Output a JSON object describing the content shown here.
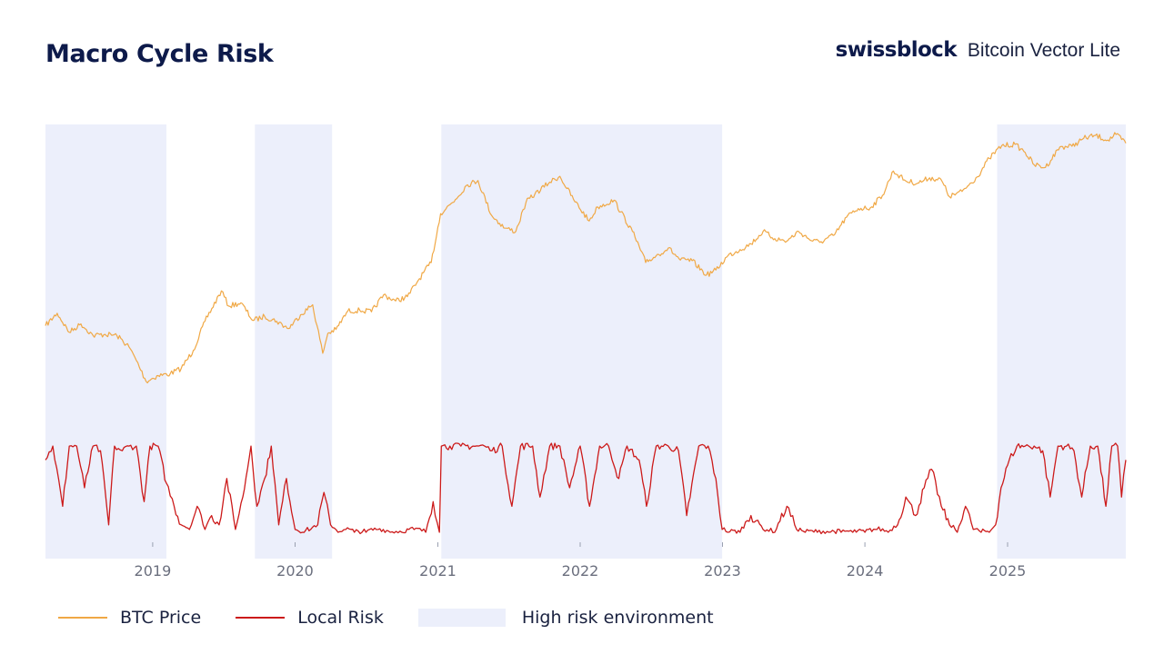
{
  "header": {
    "title": "Macro Cycle Risk",
    "brand": "swissblock",
    "product": "Bitcoin Vector Lite"
  },
  "colors": {
    "btc_price": "#f0a845",
    "local_risk": "#cc1a1a",
    "high_risk_band": "#eceffb",
    "title": "#0d1a4a",
    "axis_text": "#6b6f7e"
  },
  "legend": [
    {
      "label": "BTC Price",
      "kind": "line",
      "color": "#f0a845"
    },
    {
      "label": "Local Risk",
      "kind": "line",
      "color": "#cc1a1a"
    },
    {
      "label": "High risk environment",
      "kind": "box",
      "color": "#eceffb"
    }
  ],
  "chart_data": {
    "type": "line",
    "title": "Macro Cycle Risk",
    "xlabel": "",
    "ylabel": "",
    "x_ticks": [
      "2019",
      "2020",
      "2021",
      "2022",
      "2023",
      "2024",
      "2025"
    ],
    "xlim": [
      "2018-04-01",
      "2025-10-31"
    ],
    "price_scale": "log",
    "grid": false,
    "legend_position": "bottom",
    "high_risk_periods": [
      [
        "2018-04-01",
        "2019-02-05"
      ],
      [
        "2019-09-20",
        "2020-04-05"
      ],
      [
        "2021-01-10",
        "2022-12-31"
      ],
      [
        "2024-12-05",
        "2025-10-31"
      ]
    ],
    "series": [
      {
        "name": "BTC Price",
        "x": [
          "2018-04-01",
          "2018-05-01",
          "2018-06-01",
          "2018-07-01",
          "2018-08-01",
          "2018-09-01",
          "2018-10-01",
          "2018-11-01",
          "2018-11-20",
          "2018-12-15",
          "2019-01-15",
          "2019-02-15",
          "2019-03-15",
          "2019-04-15",
          "2019-05-15",
          "2019-06-26",
          "2019-07-15",
          "2019-08-15",
          "2019-09-15",
          "2019-10-15",
          "2019-11-15",
          "2019-12-15",
          "2020-01-15",
          "2020-02-15",
          "2020-03-12",
          "2020-03-25",
          "2020-04-15",
          "2020-05-15",
          "2020-06-15",
          "2020-07-15",
          "2020-08-15",
          "2020-09-15",
          "2020-10-15",
          "2020-11-15",
          "2020-12-15",
          "2021-01-08",
          "2021-02-15",
          "2021-03-15",
          "2021-04-14",
          "2021-05-19",
          "2021-06-22",
          "2021-07-20",
          "2021-08-15",
          "2021-09-07",
          "2021-10-15",
          "2021-11-10",
          "2021-12-15",
          "2022-01-24",
          "2022-02-15",
          "2022-03-29",
          "2022-04-15",
          "2022-05-15",
          "2022-06-18",
          "2022-07-15",
          "2022-08-15",
          "2022-09-15",
          "2022-10-15",
          "2022-11-21",
          "2022-12-15",
          "2023-01-15",
          "2023-02-15",
          "2023-03-15",
          "2023-04-15",
          "2023-05-15",
          "2023-06-15",
          "2023-07-15",
          "2023-08-20",
          "2023-09-11",
          "2023-10-15",
          "2023-11-15",
          "2023-12-15",
          "2024-01-15",
          "2024-02-15",
          "2024-03-14",
          "2024-04-15",
          "2024-05-15",
          "2024-06-15",
          "2024-07-15",
          "2024-08-05",
          "2024-09-06",
          "2024-10-15",
          "2024-11-15",
          "2024-12-17",
          "2025-01-20",
          "2025-02-15",
          "2025-03-10",
          "2025-04-08",
          "2025-05-15",
          "2025-06-15",
          "2025-07-15",
          "2025-08-14",
          "2025-09-15",
          "2025-10-06",
          "2025-10-31"
        ],
        "values": [
          7500,
          9000,
          6800,
          7700,
          6500,
          6600,
          6500,
          5500,
          4500,
          3300,
          3600,
          3700,
          4000,
          5200,
          8000,
          12500,
          10000,
          10500,
          8100,
          8600,
          8000,
          7200,
          8800,
          10200,
          5000,
          6700,
          7100,
          9300,
          9400,
          9200,
          11800,
          10800,
          11500,
          15000,
          19000,
          39000,
          48000,
          59000,
          63500,
          38000,
          31500,
          30000,
          46000,
          52000,
          62000,
          67500,
          48000,
          35000,
          43000,
          47500,
          40000,
          30000,
          19000,
          21000,
          23500,
          19700,
          19500,
          15800,
          17000,
          21000,
          23000,
          25000,
          30000,
          27000,
          26000,
          30000,
          26000,
          25800,
          28500,
          37000,
          42000,
          42500,
          51000,
          73000,
          63000,
          61000,
          66000,
          64000,
          50000,
          54000,
          67000,
          88000,
          106000,
          108000,
          96000,
          80000,
          77000,
          104000,
          105000,
          118000,
          123000,
          115000,
          125000,
          110000
        ]
      },
      {
        "name": "Local Risk",
        "x": [
          "2018-04-01",
          "2018-04-20",
          "2018-05-15",
          "2018-06-01",
          "2018-06-20",
          "2018-07-10",
          "2018-08-01",
          "2018-08-20",
          "2018-09-10",
          "2018-09-25",
          "2018-10-15",
          "2018-11-01",
          "2018-11-20",
          "2018-12-10",
          "2018-12-25",
          "2019-01-15",
          "2019-02-05",
          "2019-02-25",
          "2019-03-15",
          "2019-04-05",
          "2019-04-25",
          "2019-05-15",
          "2019-06-01",
          "2019-06-20",
          "2019-07-10",
          "2019-08-01",
          "2019-08-20",
          "2019-09-10",
          "2019-09-25",
          "2019-10-15",
          "2019-11-01",
          "2019-11-20",
          "2019-12-10",
          "2020-01-01",
          "2020-01-20",
          "2020-02-10",
          "2020-02-28",
          "2020-03-15",
          "2020-04-01",
          "2020-04-20",
          "2020-05-10",
          "2020-06-01",
          "2020-07-01",
          "2020-08-01",
          "2020-09-01",
          "2020-10-01",
          "2020-11-01",
          "2020-12-01",
          "2020-12-20",
          "2021-01-05",
          "2021-01-10",
          "2021-02-01",
          "2021-03-01",
          "2021-04-01",
          "2021-05-01",
          "2021-05-20",
          "2021-06-15",
          "2021-07-10",
          "2021-08-01",
          "2021-09-01",
          "2021-09-20",
          "2021-10-15",
          "2021-11-10",
          "2021-12-05",
          "2022-01-01",
          "2022-01-25",
          "2022-02-20",
          "2022-03-15",
          "2022-04-10",
          "2022-05-01",
          "2022-06-01",
          "2022-06-20",
          "2022-07-15",
          "2022-08-15",
          "2022-09-10",
          "2022-10-01",
          "2022-11-01",
          "2022-11-25",
          "2022-12-15",
          "2022-12-31",
          "2023-01-15",
          "2023-02-15",
          "2023-03-15",
          "2023-04-15",
          "2023-05-15",
          "2023-06-15",
          "2023-07-10",
          "2023-08-01",
          "2023-09-01",
          "2023-10-01",
          "2023-11-01",
          "2023-12-01",
          "2024-01-01",
          "2024-02-01",
          "2024-03-01",
          "2024-03-25",
          "2024-04-15",
          "2024-05-10",
          "2024-06-01",
          "2024-06-20",
          "2024-07-15",
          "2024-08-05",
          "2024-08-25",
          "2024-09-15",
          "2024-10-05",
          "2024-10-25",
          "2024-11-15",
          "2024-12-01",
          "2024-12-15",
          "2025-01-05",
          "2025-01-25",
          "2025-02-15",
          "2025-03-10",
          "2025-04-01",
          "2025-04-20",
          "2025-05-10",
          "2025-06-01",
          "2025-06-20",
          "2025-07-10",
          "2025-08-01",
          "2025-08-20",
          "2025-09-10",
          "2025-09-25",
          "2025-10-10",
          "2025-10-20",
          "2025-10-31"
        ],
        "values": [
          0.8,
          0.95,
          0.3,
          0.95,
          0.95,
          0.5,
          0.95,
          0.9,
          0.1,
          0.95,
          0.9,
          0.95,
          0.95,
          0.35,
          0.95,
          0.95,
          0.55,
          0.3,
          0.1,
          0.05,
          0.3,
          0.05,
          0.2,
          0.1,
          0.6,
          0.05,
          0.4,
          0.95,
          0.3,
          0.6,
          0.95,
          0.1,
          0.6,
          0.05,
          0.02,
          0.05,
          0.1,
          0.45,
          0.1,
          0.02,
          0.05,
          0.02,
          0.02,
          0.05,
          0.02,
          0.02,
          0.05,
          0.02,
          0.35,
          0.02,
          0.95,
          0.95,
          0.95,
          0.95,
          0.95,
          0.9,
          0.95,
          0.3,
          0.95,
          0.95,
          0.4,
          0.95,
          0.95,
          0.5,
          0.95,
          0.3,
          0.95,
          0.95,
          0.6,
          0.95,
          0.8,
          0.3,
          0.95,
          0.95,
          0.9,
          0.2,
          0.95,
          0.95,
          0.6,
          0.05,
          0.02,
          0.02,
          0.2,
          0.05,
          0.02,
          0.3,
          0.05,
          0.02,
          0.02,
          0.02,
          0.02,
          0.02,
          0.02,
          0.05,
          0.02,
          0.1,
          0.4,
          0.2,
          0.5,
          0.7,
          0.3,
          0.1,
          0.02,
          0.3,
          0.05,
          0.02,
          0.02,
          0.1,
          0.5,
          0.8,
          0.95,
          0.95,
          0.95,
          0.9,
          0.4,
          0.95,
          0.95,
          0.9,
          0.4,
          0.95,
          0.95,
          0.3,
          0.95,
          0.95,
          0.4,
          0.8
        ]
      }
    ]
  }
}
